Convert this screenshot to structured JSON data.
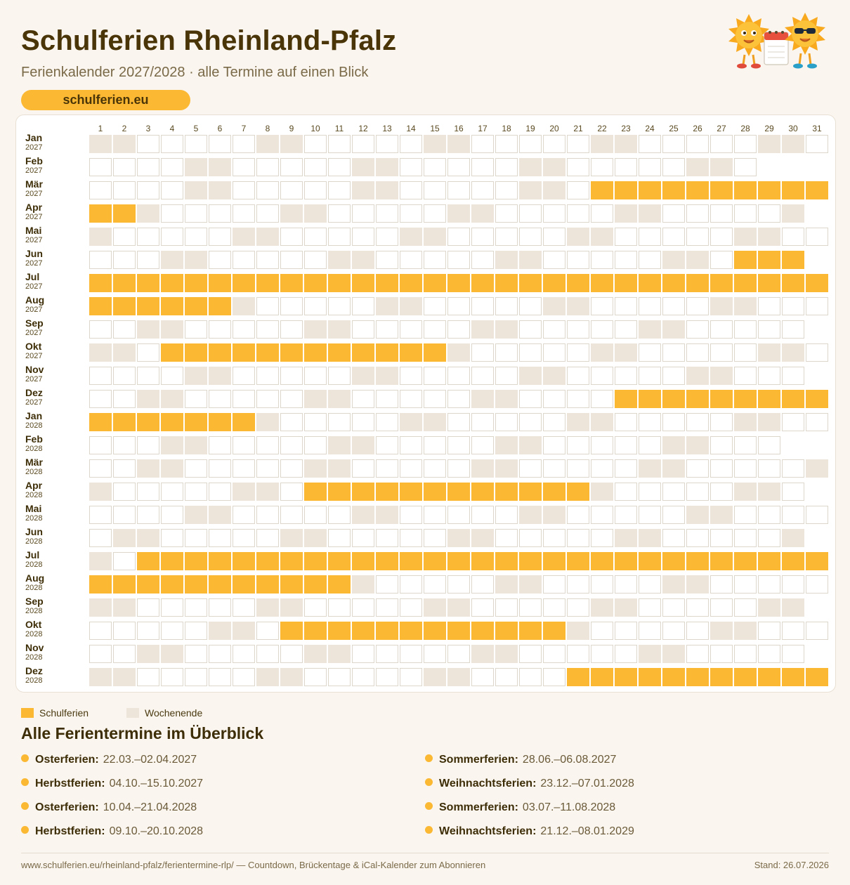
{
  "header": {
    "title": "Schulferien Rheinland-Pfalz",
    "subtitle": "Ferienkalender 2027/2028 · alle Termine auf einen Blick",
    "site": "schulferien.eu"
  },
  "calendar": {
    "days": 31,
    "months": [
      {
        "name": "Jan",
        "year": "2027",
        "length": 31,
        "first_weekday": 5,
        "holidays": []
      },
      {
        "name": "Feb",
        "year": "2027",
        "length": 28,
        "first_weekday": 1,
        "holidays": []
      },
      {
        "name": "Mär",
        "year": "2027",
        "length": 31,
        "first_weekday": 1,
        "holidays": [
          [
            22,
            31
          ]
        ]
      },
      {
        "name": "Apr",
        "year": "2027",
        "length": 30,
        "first_weekday": 4,
        "holidays": [
          [
            1,
            2
          ]
        ]
      },
      {
        "name": "Mai",
        "year": "2027",
        "length": 31,
        "first_weekday": 6,
        "holidays": []
      },
      {
        "name": "Jun",
        "year": "2027",
        "length": 30,
        "first_weekday": 2,
        "holidays": [
          [
            28,
            30
          ]
        ]
      },
      {
        "name": "Jul",
        "year": "2027",
        "length": 31,
        "first_weekday": 4,
        "holidays": [
          [
            1,
            31
          ]
        ]
      },
      {
        "name": "Aug",
        "year": "2027",
        "length": 31,
        "first_weekday": 0,
        "holidays": [
          [
            1,
            6
          ]
        ]
      },
      {
        "name": "Sep",
        "year": "2027",
        "length": 30,
        "first_weekday": 3,
        "holidays": []
      },
      {
        "name": "Okt",
        "year": "2027",
        "length": 31,
        "first_weekday": 5,
        "holidays": [
          [
            4,
            15
          ]
        ]
      },
      {
        "name": "Nov",
        "year": "2027",
        "length": 30,
        "first_weekday": 1,
        "holidays": []
      },
      {
        "name": "Dez",
        "year": "2027",
        "length": 31,
        "first_weekday": 3,
        "holidays": [
          [
            23,
            31
          ]
        ]
      },
      {
        "name": "Jan",
        "year": "2028",
        "length": 31,
        "first_weekday": 6,
        "holidays": [
          [
            1,
            7
          ]
        ]
      },
      {
        "name": "Feb",
        "year": "2028",
        "length": 29,
        "first_weekday": 2,
        "holidays": []
      },
      {
        "name": "Mär",
        "year": "2028",
        "length": 31,
        "first_weekday": 3,
        "holidays": []
      },
      {
        "name": "Apr",
        "year": "2028",
        "length": 30,
        "first_weekday": 6,
        "holidays": [
          [
            10,
            21
          ]
        ]
      },
      {
        "name": "Mai",
        "year": "2028",
        "length": 31,
        "first_weekday": 1,
        "holidays": []
      },
      {
        "name": "Jun",
        "year": "2028",
        "length": 30,
        "first_weekday": 4,
        "holidays": []
      },
      {
        "name": "Jul",
        "year": "2028",
        "length": 31,
        "first_weekday": 6,
        "holidays": [
          [
            3,
            31
          ]
        ]
      },
      {
        "name": "Aug",
        "year": "2028",
        "length": 31,
        "first_weekday": 2,
        "holidays": [
          [
            1,
            11
          ]
        ]
      },
      {
        "name": "Sep",
        "year": "2028",
        "length": 30,
        "first_weekday": 5,
        "holidays": []
      },
      {
        "name": "Okt",
        "year": "2028",
        "length": 31,
        "first_weekday": 0,
        "holidays": [
          [
            9,
            20
          ]
        ]
      },
      {
        "name": "Nov",
        "year": "2028",
        "length": 30,
        "first_weekday": 3,
        "holidays": []
      },
      {
        "name": "Dez",
        "year": "2028",
        "length": 31,
        "first_weekday": 5,
        "holidays": [
          [
            21,
            31
          ]
        ]
      }
    ]
  },
  "legend": {
    "holiday_label": "Schulferien",
    "weekend_label": "Wochenende"
  },
  "overview": {
    "title": "Alle Ferientermine im Überblick",
    "terms": [
      {
        "name": "Osterferien:",
        "dates": "22.03.–02.04.2027"
      },
      {
        "name": "Sommerferien:",
        "dates": "28.06.–06.08.2027"
      },
      {
        "name": "Herbstferien:",
        "dates": "04.10.–15.10.2027"
      },
      {
        "name": "Weihnachtsferien:",
        "dates": "23.12.–07.01.2028"
      },
      {
        "name": "Osterferien:",
        "dates": "10.04.–21.04.2028"
      },
      {
        "name": "Sommerferien:",
        "dates": "03.07.–11.08.2028"
      },
      {
        "name": "Herbstferien:",
        "dates": "09.10.–20.10.2028"
      },
      {
        "name": "Weihnachtsferien:",
        "dates": "21.12.–08.01.2029"
      }
    ]
  },
  "footer": {
    "link_text": "www.schulferien.eu/rheinland-pfalz/ferientermine-rlp/ — Countdown, Brückentage & iCal-Kalender zum Abonnieren",
    "stand": "Stand: 26.07.2026"
  },
  "colors": {
    "holiday": "#fbb832",
    "weekend": "#ede5d9",
    "background": "#faf5ef"
  }
}
